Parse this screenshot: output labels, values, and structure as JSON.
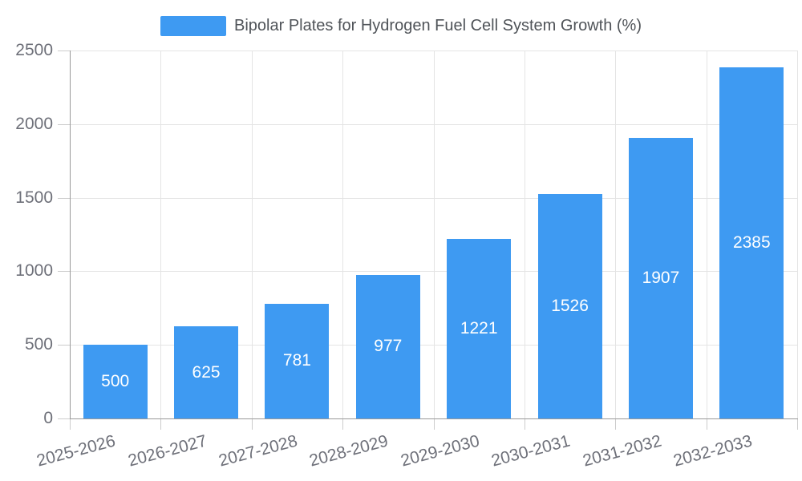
{
  "chart_data": {
    "type": "bar",
    "legend": "Bipolar Plates for Hydrogen Fuel Cell System Growth (%)",
    "legend_position": "top-center",
    "categories": [
      "2025-2026",
      "2026-2027",
      "2027-2028",
      "2028-2029",
      "2029-2030",
      "2030-2031",
      "2031-2032",
      "2032-2033"
    ],
    "values": [
      500,
      625,
      781,
      977,
      1221,
      1526,
      1907,
      2385
    ],
    "value_labels": [
      "500",
      "625",
      "781",
      "977",
      "1221",
      "1526",
      "1907",
      "2385"
    ],
    "xlabel": "",
    "ylabel": "",
    "ylim": [
      0,
      2500
    ],
    "yticks": [
      0,
      500,
      1000,
      1500,
      2000,
      2500
    ],
    "grid": true,
    "colors": {
      "bar": "#3e9af2",
      "gridline": "#e4e4e4",
      "axis_line": "#999999",
      "axis_tick": "#cccccc",
      "tick_label": "#6e7079",
      "value_label": "#ffffff",
      "legend_text": "#4f5358",
      "background": "#ffffff"
    }
  }
}
